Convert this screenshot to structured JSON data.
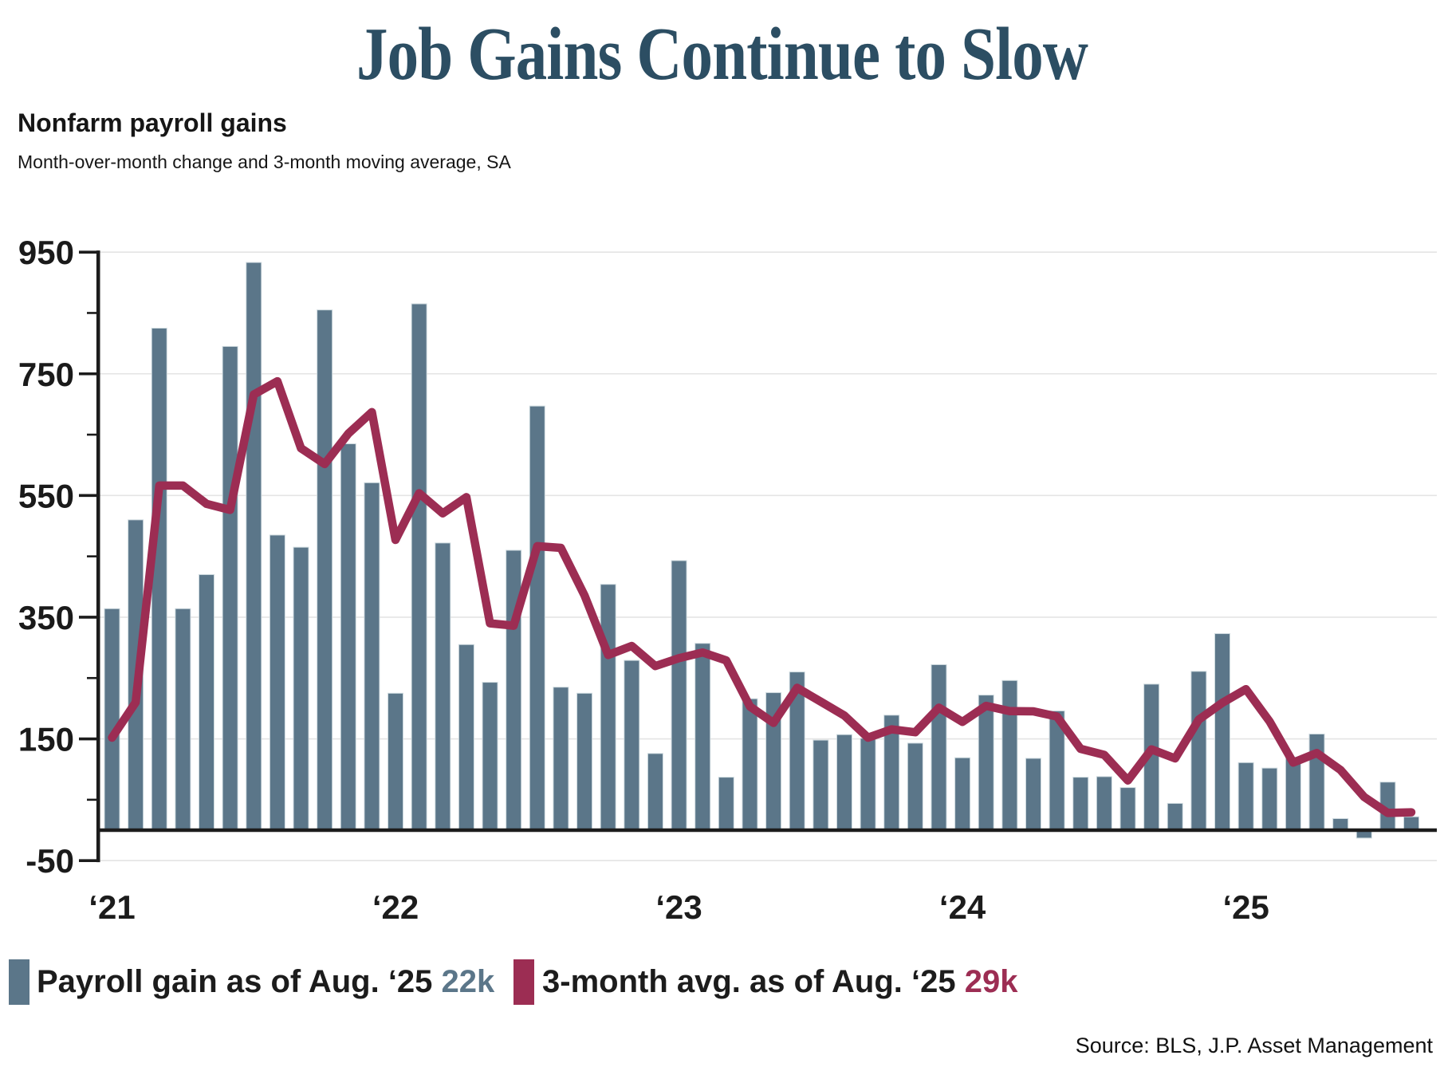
{
  "title": "Job Gains Continue to Slow",
  "heading": "Nonfarm payroll gains",
  "subheading": "Month-over-month change and 3-month moving average, SA",
  "source": "Source: BLS, J.P. Asset Management",
  "legend": {
    "bar_label": "Payroll gain as of Aug. ‘25 ",
    "bar_value": "22k",
    "line_label": "3-month avg. as of Aug. ‘25 ",
    "line_value": "29k"
  },
  "colors": {
    "bar": "#5b7689",
    "bar_edge": "#cdd9de",
    "line": "#9c2d53",
    "title": "#2c4e63",
    "grid": "#e4e4e4",
    "axis": "#1c1c1c",
    "text": "#1a1a1a"
  },
  "chart_data": {
    "type": "bar",
    "title": "Nonfarm payroll gains",
    "subtitle": "Month-over-month change and 3-month moving average, SA",
    "unit": "thousands of jobs",
    "ylim": [
      -50,
      950
    ],
    "y_ticks": [
      950,
      750,
      550,
      350,
      150,
      -50
    ],
    "y_minor_ticks": [
      850,
      650,
      450,
      250,
      50
    ],
    "grid": true,
    "legend_position": "bottom",
    "x_tick_labels": [
      "‘21",
      "‘22",
      "‘23",
      "‘24",
      "‘25"
    ],
    "x_tick_month_index": [
      0,
      12,
      24,
      36,
      48
    ],
    "months": [
      "2021-01",
      "2021-02",
      "2021-03",
      "2021-04",
      "2021-05",
      "2021-06",
      "2021-07",
      "2021-08",
      "2021-09",
      "2021-10",
      "2021-11",
      "2021-12",
      "2022-01",
      "2022-02",
      "2022-03",
      "2022-04",
      "2022-05",
      "2022-06",
      "2022-07",
      "2022-08",
      "2022-09",
      "2022-10",
      "2022-11",
      "2022-12",
      "2023-01",
      "2023-02",
      "2023-03",
      "2023-04",
      "2023-05",
      "2023-06",
      "2023-07",
      "2023-08",
      "2023-09",
      "2023-10",
      "2023-11",
      "2023-12",
      "2024-01",
      "2024-02",
      "2024-03",
      "2024-04",
      "2024-05",
      "2024-06",
      "2024-07",
      "2024-08",
      "2024-09",
      "2024-10",
      "2024-11",
      "2024-12",
      "2025-01",
      "2025-02",
      "2025-03",
      "2025-04",
      "2025-05",
      "2025-06",
      "2025-07",
      "2025-08"
    ],
    "series": [
      {
        "name": "Payroll gain as of Aug. ‘25: 22k",
        "type": "bar",
        "values": [
          364,
          510,
          825,
          364,
          420,
          795,
          933,
          485,
          465,
          855,
          635,
          571,
          225,
          865,
          472,
          305,
          243,
          460,
          697,
          235,
          225,
          404,
          279,
          126,
          443,
          307,
          87,
          216,
          226,
          260,
          148,
          157,
          151,
          189,
          143,
          272,
          119,
          222,
          246,
          118,
          196,
          87,
          88,
          70,
          240,
          44,
          261,
          323,
          111,
          102,
          120,
          158,
          19,
          -13,
          79,
          22
        ]
      },
      {
        "name": "3-month avg. as of Aug. ‘25: 29k",
        "type": "line",
        "values": [
          152,
          210,
          566.3,
          566.3,
          536.3,
          526.3,
          716,
          737.7,
          627.7,
          601.7,
          651.7,
          687,
          477,
          553.7,
          520.7,
          547.3,
          340,
          336,
          466.7,
          464,
          385.7,
          288,
          302.7,
          269.7,
          282.7,
          292,
          279,
          203.3,
          176.3,
          234,
          211.3,
          188.3,
          152,
          165.7,
          161,
          201.3,
          178,
          204.3,
          195.7,
          195.3,
          186.7,
          133.7,
          123.7,
          81.7,
          132.7,
          118,
          181.7,
          209.3,
          231.7,
          178.7,
          111,
          126.7,
          99,
          54.7,
          28.3,
          29.3
        ]
      }
    ]
  }
}
